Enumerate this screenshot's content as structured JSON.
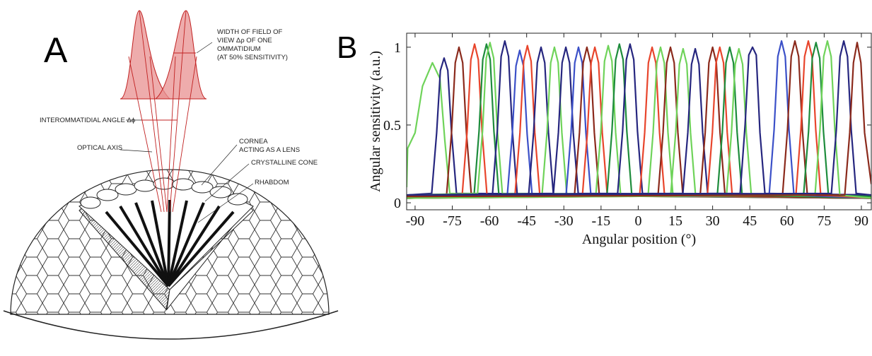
{
  "panel_labels": [
    "A",
    "B"
  ],
  "diagram": {
    "field_of_view_label": [
      "WIDTH OF FIELD OF",
      "VIEW Δρ OF ONE",
      "OMMATIDIUM",
      "(AT 50% SENSITIVITY)"
    ],
    "interommatidial_label": "INTEROMMATIDIAL ANGLE Δϕ",
    "optical_axis_label": "OPTICAL AXIS",
    "cornea_label": [
      "CORNEA",
      "ACTING AS A LENS"
    ],
    "cone_label": "CRYSTALLINE CONE",
    "rhabdom_label": "RHABDOM"
  },
  "chart_data": {
    "type": "line",
    "xlabel": "Angular position (°)",
    "ylabel": "Angular sensitivity (a.u.)",
    "xlim": [
      -93.4,
      94
    ],
    "ylim": [
      -0.045,
      1.09
    ],
    "xticks": [
      -90,
      -75,
      -60,
      -45,
      -30,
      -15,
      0,
      15,
      30,
      45,
      60,
      75,
      90
    ],
    "yticks": [
      0,
      0.5,
      1
    ],
    "series": [
      {
        "color": "#6fd35a",
        "x": [
          -93.4,
          -93,
          -90,
          -87,
          -83,
          -80,
          -78,
          -76,
          94
        ],
        "values": [
          0.1,
          0.35,
          0.45,
          0.75,
          0.9,
          0.8,
          0.4,
          0.06,
          0.04
        ]
      },
      {
        "color": "#26267f",
        "x": [
          -93.4,
          -83.3,
          -81.3,
          -79.8,
          -78.3,
          -76.8,
          -75.3,
          -73.3,
          94
        ],
        "values": [
          0.05,
          0.06,
          0.45,
          0.85,
          0.93,
          0.85,
          0.45,
          0.06,
          0.05
        ]
      },
      {
        "color": "#8b2a1c",
        "x": [
          -93.4,
          -77.3,
          -75.3,
          -73.8,
          -72.3,
          -70.8,
          -69.3,
          -67.3,
          94
        ],
        "values": [
          0.03,
          0.05,
          0.45,
          0.9,
          1.0,
          0.9,
          0.45,
          0.05,
          0.03
        ]
      },
      {
        "color": "#e8452c",
        "x": [
          -93.4,
          -71,
          -69,
          -67.5,
          -66,
          -64.5,
          -63,
          -61,
          94
        ],
        "values": [
          0.04,
          0.05,
          0.46,
          0.92,
          1.02,
          0.92,
          0.46,
          0.05,
          0.04
        ]
      },
      {
        "color": "#1e8c3c",
        "x": [
          -93.4,
          -66.2,
          -64.2,
          -62.7,
          -61.2,
          -59.7,
          -58.2,
          -56.2,
          94
        ],
        "values": [
          0.03,
          0.05,
          0.46,
          0.92,
          1.02,
          0.92,
          0.46,
          0.05,
          0.03
        ]
      },
      {
        "color": "#6fd35a",
        "x": [
          -93.4,
          -64.8,
          -62.8,
          -61.3,
          -59.8,
          -58.3,
          -56.8,
          -54.8,
          94
        ],
        "values": [
          0.05,
          0.06,
          0.46,
          0.93,
          1.03,
          0.93,
          0.46,
          0.06,
          0.05
        ]
      },
      {
        "color": "#26267f",
        "x": [
          -93.4,
          -58.8,
          -56.8,
          -55.3,
          -53.8,
          -52.3,
          -50.8,
          -48.8,
          94
        ],
        "values": [
          0.03,
          0.05,
          0.47,
          0.94,
          1.04,
          0.94,
          0.47,
          0.05,
          0.03
        ]
      },
      {
        "color": "#3b50c8",
        "x": [
          -93.4,
          -52.8,
          -50.8,
          -49.3,
          -47.8,
          -46.3,
          -44.8,
          -42.8,
          94
        ],
        "values": [
          0.04,
          0.05,
          0.44,
          0.88,
          0.98,
          0.88,
          0.44,
          0.05,
          0.04
        ]
      },
      {
        "color": "#e8452c",
        "x": [
          -93.4,
          -49.7,
          -47.7,
          -46.2,
          -44.7,
          -43.2,
          -41.7,
          -39.7,
          94
        ],
        "values": [
          0.03,
          0.05,
          0.45,
          0.91,
          1.01,
          0.91,
          0.45,
          0.05,
          0.03
        ]
      },
      {
        "color": "#26267f",
        "x": [
          -93.4,
          -44.2,
          -42.2,
          -40.7,
          -39.2,
          -37.7,
          -36.2,
          -34.2,
          94
        ],
        "values": [
          0.04,
          0.05,
          0.45,
          0.9,
          1.0,
          0.9,
          0.45,
          0.05,
          0.04
        ]
      },
      {
        "color": "#6fd35a",
        "x": [
          -93.4,
          -38.8,
          -36.8,
          -35.3,
          -33.8,
          -32.3,
          -30.8,
          -28.8,
          94
        ],
        "values": [
          0.03,
          0.05,
          0.45,
          0.9,
          1.0,
          0.9,
          0.45,
          0.05,
          0.03
        ]
      },
      {
        "color": "#26267f",
        "x": [
          -93.4,
          -34.2,
          -32.2,
          -30.7,
          -29.2,
          -27.7,
          -26.2,
          -24.2,
          94
        ],
        "values": [
          0.05,
          0.06,
          0.45,
          0.9,
          1.0,
          0.9,
          0.45,
          0.06,
          0.05
        ]
      },
      {
        "color": "#3b50c8",
        "x": [
          -93.4,
          -29.1,
          -27.1,
          -25.6,
          -24.1,
          -22.6,
          -21.1,
          -19.1,
          94
        ],
        "values": [
          0.03,
          0.05,
          0.45,
          0.9,
          1.0,
          0.9,
          0.45,
          0.05,
          0.03
        ]
      },
      {
        "color": "#8b2a1c",
        "x": [
          -93.4,
          -25.7,
          -23.7,
          -22.2,
          -20.7,
          -19.2,
          -17.7,
          -15.7,
          94
        ],
        "values": [
          0.04,
          0.05,
          0.45,
          0.9,
          1.0,
          0.9,
          0.45,
          0.05,
          0.04
        ]
      },
      {
        "color": "#e8452c",
        "x": [
          -93.4,
          -22.5,
          -20.5,
          -19,
          -17.5,
          -16,
          -14.5,
          -12.5,
          94
        ],
        "values": [
          0.03,
          0.05,
          0.45,
          0.9,
          1.0,
          0.9,
          0.45,
          0.05,
          0.03
        ]
      },
      {
        "color": "#6fd35a",
        "x": [
          -93.4,
          -17.1,
          -15.1,
          -13.6,
          -12.1,
          -10.6,
          -9.1,
          -7.1,
          94
        ],
        "values": [
          0.04,
          0.05,
          0.45,
          0.91,
          1.01,
          0.91,
          0.45,
          0.05,
          0.04
        ]
      },
      {
        "color": "#1e8c3c",
        "x": [
          -93.4,
          -12.6,
          -10.6,
          -9.1,
          -7.6,
          -6.1,
          -4.6,
          -2.6,
          94
        ],
        "values": [
          0.03,
          0.05,
          0.46,
          0.92,
          1.02,
          0.92,
          0.46,
          0.05,
          0.03
        ]
      },
      {
        "color": "#26267f",
        "x": [
          -93.4,
          -8.3,
          -6.3,
          -4.8,
          -3.3,
          -1.8,
          -0.3,
          1.7,
          94
        ],
        "values": [
          0.05,
          0.06,
          0.46,
          0.92,
          1.02,
          0.92,
          0.46,
          0.06,
          0.05
        ]
      },
      {
        "color": "#e8452c",
        "x": [
          -93.4,
          0.6,
          2.6,
          4.1,
          5.6,
          7.1,
          8.6,
          10.6,
          94
        ],
        "values": [
          0.03,
          0.05,
          0.45,
          0.9,
          1.0,
          0.9,
          0.45,
          0.05,
          0.03
        ]
      },
      {
        "color": "#6fd35a",
        "x": [
          -93.4,
          4,
          6,
          7.5,
          9,
          10.5,
          12,
          14,
          94
        ],
        "values": [
          0.04,
          0.05,
          0.45,
          0.9,
          1.0,
          0.9,
          0.45,
          0.05,
          0.04
        ]
      },
      {
        "color": "#8b2a1c",
        "x": [
          -93.4,
          8,
          10,
          11.5,
          13,
          14.5,
          16,
          18,
          94
        ],
        "values": [
          0.03,
          0.05,
          0.45,
          0.9,
          1.0,
          0.9,
          0.45,
          0.05,
          0.03
        ]
      },
      {
        "color": "#6fd35a",
        "x": [
          -93.4,
          13.1,
          15.1,
          16.6,
          18.1,
          19.6,
          21.1,
          23.1,
          94
        ],
        "values": [
          0.04,
          0.05,
          0.45,
          0.89,
          0.99,
          0.89,
          0.45,
          0.05,
          0.04
        ]
      },
      {
        "color": "#26267f",
        "x": [
          -93.4,
          18,
          20,
          21.5,
          23,
          24.5,
          26,
          28,
          94
        ],
        "values": [
          0.05,
          0.06,
          0.45,
          0.89,
          0.99,
          0.89,
          0.45,
          0.06,
          0.05
        ]
      },
      {
        "color": "#8b2a1c",
        "x": [
          -93.4,
          25,
          27,
          28.5,
          30,
          31.5,
          33,
          35,
          94
        ],
        "values": [
          0.03,
          0.05,
          0.45,
          0.9,
          1.0,
          0.9,
          0.45,
          0.05,
          0.03
        ]
      },
      {
        "color": "#e8452c",
        "x": [
          -93.4,
          27.9,
          29.9,
          31.4,
          32.9,
          34.4,
          35.9,
          37.9,
          94
        ],
        "values": [
          0.04,
          0.05,
          0.45,
          0.9,
          1.0,
          0.9,
          0.45,
          0.05,
          0.04
        ]
      },
      {
        "color": "#1e8c3c",
        "x": [
          -93.4,
          31.9,
          33.9,
          35.4,
          36.9,
          38.4,
          39.9,
          41.9,
          94
        ],
        "values": [
          0.03,
          0.05,
          0.45,
          0.9,
          1.0,
          0.9,
          0.45,
          0.05,
          0.03
        ]
      },
      {
        "color": "#6fd35a",
        "x": [
          -93.4,
          35.6,
          37.6,
          39.1,
          40.6,
          42.1,
          43.6,
          45.6,
          94
        ],
        "values": [
          0.04,
          0.05,
          0.45,
          0.89,
          0.99,
          0.89,
          0.45,
          0.05,
          0.04
        ]
      },
      {
        "color": "#26267f",
        "x": [
          -93.4,
          41.1,
          43.1,
          44.6,
          46.1,
          47.6,
          49.1,
          51.1,
          94
        ],
        "values": [
          0.05,
          0.06,
          0.5,
          0.95,
          1.0,
          0.95,
          0.45,
          0.06,
          0.05
        ]
      },
      {
        "color": "#3b50c8",
        "x": [
          -93.4,
          52.8,
          54.8,
          56.3,
          57.8,
          59.3,
          60.8,
          62.8,
          94
        ],
        "values": [
          0.03,
          0.05,
          0.47,
          0.94,
          1.04,
          0.94,
          0.47,
          0.05,
          0.03
        ]
      },
      {
        "color": "#8b2a1c",
        "x": [
          -93.4,
          58.2,
          60.2,
          61.7,
          63.2,
          64.7,
          66.2,
          68.2,
          94
        ],
        "values": [
          0.04,
          0.05,
          0.47,
          0.94,
          1.04,
          0.94,
          0.47,
          0.05,
          0.04
        ]
      },
      {
        "color": "#e8452c",
        "x": [
          -93.4,
          63.6,
          65.6,
          67.1,
          68.6,
          70.1,
          71.6,
          73.6,
          94
        ],
        "values": [
          0.03,
          0.05,
          0.47,
          0.94,
          1.04,
          0.94,
          0.47,
          0.05,
          0.03
        ]
      },
      {
        "color": "#1e8c3c",
        "x": [
          -93.4,
          66.7,
          68.7,
          70.2,
          71.7,
          73.2,
          74.7,
          76.7,
          94
        ],
        "values": [
          0.04,
          0.05,
          0.46,
          0.93,
          1.03,
          0.93,
          0.46,
          0.05,
          0.04
        ]
      },
      {
        "color": "#6fd35a",
        "x": [
          -93.4,
          71.3,
          73.3,
          74.8,
          76.3,
          77.8,
          79.3,
          81.3,
          94
        ],
        "values": [
          0.03,
          0.05,
          0.47,
          0.94,
          1.04,
          0.94,
          0.47,
          0.05,
          0.03
        ]
      },
      {
        "color": "#26267f",
        "x": [
          -93.4,
          77.9,
          79.9,
          81.4,
          82.9,
          84.4,
          85.9,
          87.9,
          94
        ],
        "values": [
          0.05,
          0.06,
          0.47,
          0.94,
          1.04,
          0.94,
          0.47,
          0.06,
          0.05
        ]
      },
      {
        "color": "#8b2a1c",
        "x": [
          -93.4,
          83.3,
          85.3,
          86.8,
          88.3,
          89.8,
          91.3,
          94
        ],
        "values": [
          0.04,
          0.05,
          0.45,
          0.9,
          1.03,
          0.9,
          0.45,
          0.12
        ]
      }
    ]
  }
}
